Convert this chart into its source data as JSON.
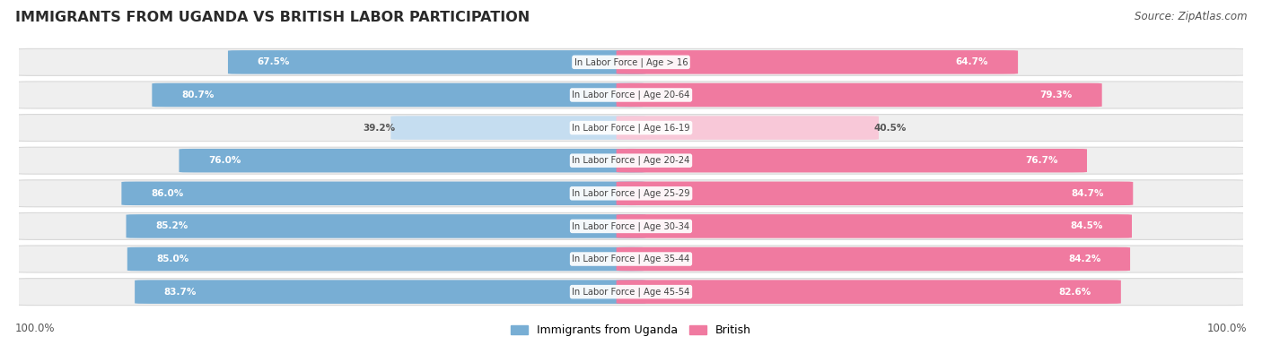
{
  "title": "IMMIGRANTS FROM UGANDA VS BRITISH LABOR PARTICIPATION",
  "source": "Source: ZipAtlas.com",
  "categories": [
    "In Labor Force | Age > 16",
    "In Labor Force | Age 20-64",
    "In Labor Force | Age 16-19",
    "In Labor Force | Age 20-24",
    "In Labor Force | Age 25-29",
    "In Labor Force | Age 30-34",
    "In Labor Force | Age 35-44",
    "In Labor Force | Age 45-54"
  ],
  "uganda_values": [
    67.5,
    80.7,
    39.2,
    76.0,
    86.0,
    85.2,
    85.0,
    83.7
  ],
  "british_values": [
    64.7,
    79.3,
    40.5,
    76.7,
    84.7,
    84.5,
    84.2,
    82.6
  ],
  "uganda_color_strong": "#78aed4",
  "uganda_color_light": "#c5ddf0",
  "british_color_strong": "#f07aa0",
  "british_color_light": "#f8c8d8",
  "row_bg_color": "#efefef",
  "row_edge_color": "#d8d8d8",
  "label_white": "#ffffff",
  "label_dark": "#555555",
  "center_label_color": "#444444",
  "legend_uganda": "Immigrants from Uganda",
  "legend_british": "British",
  "threshold_white_label": 55.0,
  "bottom_label": "100.0%"
}
